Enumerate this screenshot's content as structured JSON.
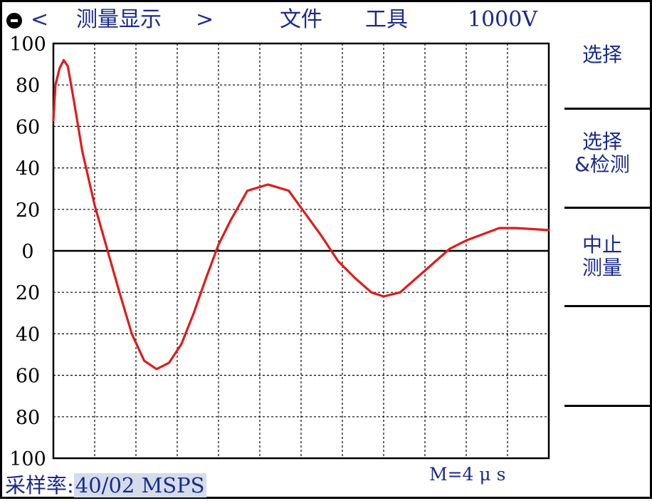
{
  "menu": {
    "prev_arrow": "<",
    "title": "测量显示",
    "next_arrow": ">",
    "file": "文件",
    "tools": "工具",
    "voltage": "1000V"
  },
  "softkeys": [
    {
      "lines": [
        "选择"
      ]
    },
    {
      "lines": [
        "选择",
        "&检测"
      ]
    },
    {
      "lines": [
        "中止",
        "测量"
      ]
    },
    {
      "lines": []
    },
    {
      "lines": []
    }
  ],
  "status": {
    "sample_rate_label": "采样率:",
    "sample_rate_value": "40/02 MSPS",
    "m_label": "M=4 μ s"
  },
  "colors": {
    "trace": "#e01b1b",
    "text": "#1a2a8c",
    "grid": "#000000",
    "sample_rate_highlight": "#d4dcea"
  },
  "icons": {
    "power": "power-icon"
  },
  "chart_data": {
    "type": "line",
    "y_tick_labels": [
      "100",
      "80",
      "60",
      "40",
      "20",
      "0",
      "20",
      "40",
      "60",
      "80",
      "100"
    ],
    "y_tick_values": [
      100,
      80,
      60,
      40,
      20,
      0,
      -20,
      -40,
      -60,
      -80,
      -100
    ],
    "ylim": [
      -100,
      100
    ],
    "x_divisions": 12,
    "y_divisions": 10,
    "grid": true,
    "series": [
      {
        "color": "#e01b1b",
        "points": [
          [
            0.0,
            63
          ],
          [
            0.05,
            80
          ],
          [
            0.15,
            88
          ],
          [
            0.25,
            92
          ],
          [
            0.35,
            89
          ],
          [
            0.5,
            72
          ],
          [
            0.7,
            48
          ],
          [
            1.0,
            22
          ],
          [
            1.3,
            1
          ],
          [
            1.6,
            -20
          ],
          [
            1.9,
            -40
          ],
          [
            2.2,
            -53
          ],
          [
            2.5,
            -57
          ],
          [
            2.8,
            -54
          ],
          [
            3.1,
            -45
          ],
          [
            3.4,
            -30
          ],
          [
            3.7,
            -13
          ],
          [
            4.0,
            3
          ],
          [
            4.3,
            15
          ],
          [
            4.7,
            29
          ],
          [
            5.2,
            32
          ],
          [
            5.7,
            29
          ],
          [
            6.1,
            18
          ],
          [
            6.5,
            7
          ],
          [
            6.9,
            -5
          ],
          [
            7.3,
            -13
          ],
          [
            7.7,
            -20
          ],
          [
            8.0,
            -22
          ],
          [
            8.4,
            -20
          ],
          [
            8.8,
            -13
          ],
          [
            9.2,
            -6
          ],
          [
            9.6,
            1
          ],
          [
            10.0,
            5
          ],
          [
            10.4,
            8
          ],
          [
            10.8,
            11
          ],
          [
            11.2,
            11
          ],
          [
            12.0,
            10
          ]
        ]
      }
    ]
  }
}
